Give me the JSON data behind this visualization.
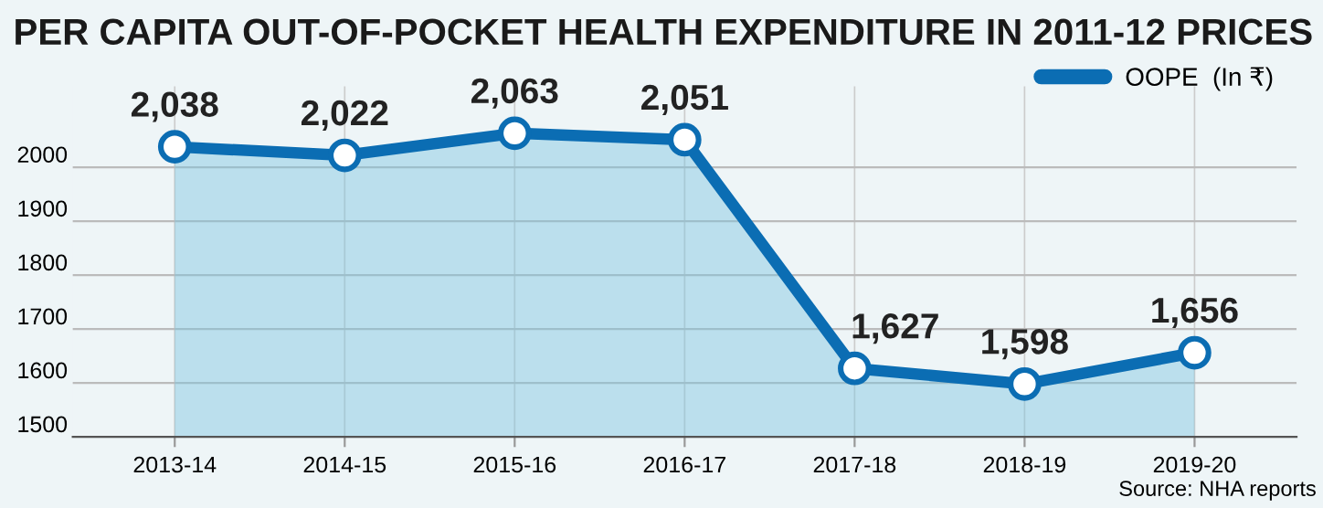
{
  "chart_data": {
    "type": "area",
    "title": "PER CAPITA OUT-OF-POCKET HEALTH EXPENDITURE IN 2011-12 PRICES",
    "categories": [
      "2013-14",
      "2014-15",
      "2015-16",
      "2016-17",
      "2017-18",
      "2018-19",
      "2019-20"
    ],
    "series": [
      {
        "name": "OOPE  (In ₹)",
        "color": "#0b6db3",
        "values": [
          2038,
          2022,
          2063,
          2051,
          1627,
          1598,
          1656
        ],
        "value_labels": [
          "2,038",
          "2,022",
          "2,063",
          "2,051",
          "1,627",
          "1,598",
          "1,656"
        ]
      }
    ],
    "ylim": [
      1500,
      2150
    ],
    "yticks": [
      1500,
      1600,
      1700,
      1800,
      1900,
      2000
    ],
    "grid": true,
    "legend": "top right",
    "marker": "circle",
    "line_style": "solid",
    "annotations": [
      "Source: NHA reports"
    ]
  }
}
